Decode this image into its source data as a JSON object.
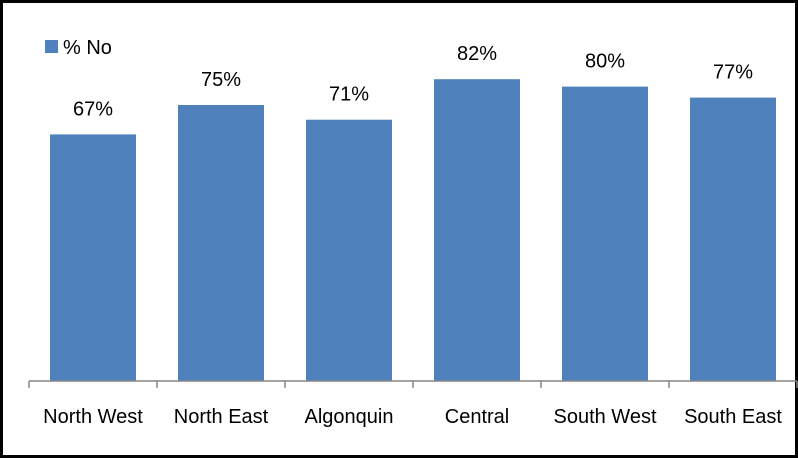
{
  "chart_data": {
    "type": "bar",
    "categories": [
      "North West",
      "North East",
      "Algonquin",
      "Central",
      "South West",
      "South East"
    ],
    "series": [
      {
        "name": "% No",
        "values": [
          67,
          75,
          71,
          82,
          80,
          77
        ],
        "data_labels": [
          "67%",
          "75%",
          "71%",
          "82%",
          "80%",
          "77%"
        ]
      }
    ],
    "ylim": [
      0,
      100
    ],
    "grid": false,
    "legend": "top-left",
    "colors": {
      "bar": "#4F81BD",
      "axis": "#868686",
      "text": "#000000",
      "border": "#000000"
    }
  }
}
